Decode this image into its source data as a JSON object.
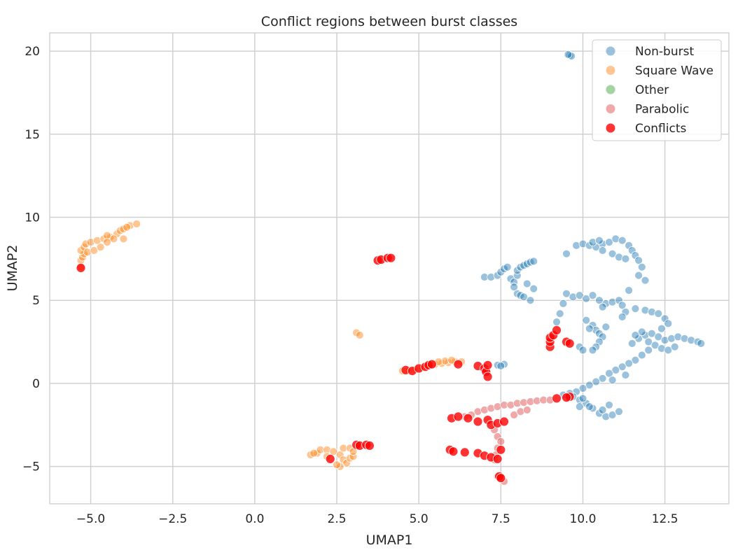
{
  "chart_data": {
    "type": "scatter",
    "title": "Conflict regions between burst classes",
    "xlabel": "UMAP1",
    "ylabel": "UMAP2",
    "xlim": [
      -6.25,
      14.45
    ],
    "ylim": [
      -7.25,
      21.1
    ],
    "xticks": [
      -5.0,
      -2.5,
      0.0,
      2.5,
      5.0,
      7.5,
      10.0,
      12.5
    ],
    "xtick_labels": [
      "−5.0",
      "−2.5",
      "0.0",
      "2.5",
      "5.0",
      "7.5",
      "10.0",
      "12.5"
    ],
    "yticks": [
      -5,
      0,
      5,
      10,
      15,
      20
    ],
    "ytick_labels": [
      "−5",
      "0",
      "5",
      "10",
      "15",
      "20"
    ],
    "grid": true,
    "legend_position": "top-right",
    "series": [
      {
        "name": "Non-burst",
        "color": "#1f77b4",
        "opacity": 0.45,
        "points": [
          [
            9.6,
            19.75
          ],
          [
            9.65,
            19.7
          ],
          [
            9.55,
            19.8
          ],
          [
            7.0,
            6.4
          ],
          [
            7.2,
            6.4
          ],
          [
            7.4,
            6.5
          ],
          [
            7.5,
            6.7
          ],
          [
            7.6,
            6.9
          ],
          [
            7.7,
            7.0
          ],
          [
            7.8,
            6.3
          ],
          [
            7.9,
            6.1
          ],
          [
            8.0,
            6.5
          ],
          [
            8.0,
            6.8
          ],
          [
            8.1,
            7.0
          ],
          [
            8.2,
            7.1
          ],
          [
            8.3,
            7.2
          ],
          [
            8.4,
            7.3
          ],
          [
            8.5,
            7.35
          ],
          [
            8.0,
            5.4
          ],
          [
            8.1,
            5.3
          ],
          [
            8.2,
            5.2
          ],
          [
            8.4,
            5.0
          ],
          [
            7.9,
            5.8
          ],
          [
            8.3,
            6.0
          ],
          [
            8.5,
            5.7
          ],
          [
            9.5,
            7.8
          ],
          [
            9.8,
            8.3
          ],
          [
            10.0,
            8.4
          ],
          [
            10.2,
            8.3
          ],
          [
            10.4,
            8.2
          ],
          [
            10.6,
            8.4
          ],
          [
            10.8,
            8.5
          ],
          [
            11.0,
            8.7
          ],
          [
            11.2,
            8.6
          ],
          [
            11.4,
            8.3
          ],
          [
            11.5,
            8.0
          ],
          [
            11.6,
            7.7
          ],
          [
            11.7,
            7.4
          ],
          [
            11.8,
            7.0
          ],
          [
            11.7,
            6.5
          ],
          [
            11.9,
            6.2
          ],
          [
            10.6,
            8.0
          ],
          [
            10.9,
            7.8
          ],
          [
            11.1,
            7.6
          ],
          [
            11.3,
            7.5
          ],
          [
            10.3,
            8.5
          ],
          [
            10.5,
            8.6
          ],
          [
            9.5,
            5.4
          ],
          [
            9.7,
            5.2
          ],
          [
            9.9,
            5.3
          ],
          [
            10.1,
            5.1
          ],
          [
            10.3,
            5.3
          ],
          [
            10.5,
            5.0
          ],
          [
            10.7,
            4.8
          ],
          [
            10.9,
            4.9
          ],
          [
            11.1,
            5.0
          ],
          [
            11.2,
            4.7
          ],
          [
            11.3,
            4.3
          ],
          [
            11.2,
            4.0
          ],
          [
            11.4,
            5.6
          ],
          [
            9.4,
            4.8
          ],
          [
            9.3,
            4.2
          ],
          [
            9.2,
            3.7
          ],
          [
            10.6,
            4.6
          ],
          [
            10.1,
            3.8
          ],
          [
            10.3,
            3.5
          ],
          [
            10.4,
            3.2
          ],
          [
            10.5,
            3.0
          ],
          [
            10.6,
            2.8
          ],
          [
            10.5,
            2.5
          ],
          [
            10.4,
            2.2
          ],
          [
            10.3,
            2.0
          ],
          [
            10.2,
            3.3
          ],
          [
            10.7,
            3.4
          ],
          [
            9.9,
            2.2
          ],
          [
            10.0,
            2.0
          ],
          [
            11.5,
            2.4
          ],
          [
            11.7,
            2.7
          ],
          [
            11.9,
            2.9
          ],
          [
            12.1,
            3.0
          ],
          [
            12.3,
            2.8
          ],
          [
            12.5,
            2.6
          ],
          [
            12.7,
            2.7
          ],
          [
            12.9,
            2.8
          ],
          [
            13.1,
            2.7
          ],
          [
            13.3,
            2.6
          ],
          [
            13.5,
            2.5
          ],
          [
            13.6,
            2.4
          ],
          [
            12.0,
            2.5
          ],
          [
            12.2,
            2.3
          ],
          [
            12.4,
            2.1
          ],
          [
            12.6,
            2.0
          ],
          [
            12.8,
            2.2
          ],
          [
            11.6,
            4.5
          ],
          [
            11.9,
            4.4
          ],
          [
            12.1,
            4.3
          ],
          [
            12.3,
            4.2
          ],
          [
            12.5,
            3.9
          ],
          [
            12.6,
            3.6
          ],
          [
            12.4,
            3.3
          ],
          [
            11.8,
            3.1
          ],
          [
            11.6,
            2.9
          ],
          [
            12.0,
            2.0
          ],
          [
            11.8,
            1.7
          ],
          [
            11.6,
            1.4
          ],
          [
            11.4,
            1.2
          ],
          [
            11.2,
            1.0
          ],
          [
            11.0,
            0.8
          ],
          [
            10.8,
            0.6
          ],
          [
            10.6,
            0.3
          ],
          [
            10.4,
            0.1
          ],
          [
            10.2,
            -0.1
          ],
          [
            10.0,
            -0.3
          ],
          [
            9.8,
            -0.5
          ],
          [
            9.6,
            -0.6
          ],
          [
            9.4,
            -0.7
          ],
          [
            11.3,
            0.5
          ],
          [
            10.9,
            0.2
          ],
          [
            9.7,
            -0.8
          ],
          [
            9.9,
            -1.0
          ],
          [
            10.1,
            -1.2
          ],
          [
            10.3,
            -1.5
          ],
          [
            10.5,
            -1.8
          ],
          [
            10.7,
            -2.0
          ],
          [
            10.9,
            -1.9
          ],
          [
            11.1,
            -1.7
          ],
          [
            10.2,
            -1.4
          ],
          [
            10.6,
            -1.6
          ],
          [
            10.8,
            -1.3
          ],
          [
            9.9,
            -1.4
          ],
          [
            10.0,
            -0.9
          ],
          [
            7.4,
            1.1
          ],
          [
            7.6,
            1.15
          ],
          [
            7.5,
            1.05
          ]
        ]
      },
      {
        "name": "Square Wave",
        "color": "#ff7f0e",
        "opacity": 0.45,
        "points": [
          [
            -5.3,
            7.0
          ],
          [
            -5.3,
            7.4
          ],
          [
            -5.25,
            7.6
          ],
          [
            -5.2,
            7.8
          ],
          [
            -5.3,
            8.0
          ],
          [
            -5.2,
            8.2
          ],
          [
            -5.15,
            8.4
          ],
          [
            -5.0,
            8.5
          ],
          [
            -4.8,
            8.6
          ],
          [
            -4.6,
            8.7
          ],
          [
            -4.4,
            8.8
          ],
          [
            -4.2,
            9.0
          ],
          [
            -4.1,
            9.2
          ],
          [
            -4.0,
            9.3
          ],
          [
            -3.8,
            9.5
          ],
          [
            -3.6,
            9.6
          ],
          [
            -4.5,
            8.9
          ],
          [
            -4.3,
            8.7
          ],
          [
            -5.1,
            7.9
          ],
          [
            -4.9,
            8.0
          ],
          [
            -4.7,
            8.2
          ],
          [
            -4.5,
            8.5
          ],
          [
            -4.0,
            8.7
          ],
          [
            -3.9,
            9.4
          ],
          [
            3.1,
            3.05
          ],
          [
            3.2,
            2.9
          ],
          [
            4.5,
            0.75
          ],
          [
            4.7,
            0.8
          ],
          [
            4.9,
            0.85
          ],
          [
            5.1,
            0.95
          ],
          [
            5.3,
            1.05
          ],
          [
            5.5,
            1.15
          ],
          [
            5.7,
            1.2
          ],
          [
            5.9,
            1.25
          ],
          [
            6.1,
            1.3
          ],
          [
            6.3,
            1.3
          ],
          [
            5.8,
            1.35
          ],
          [
            5.6,
            1.3
          ],
          [
            6.0,
            1.4
          ],
          [
            1.7,
            -4.3
          ],
          [
            1.9,
            -4.2
          ],
          [
            2.0,
            -4.0
          ],
          [
            2.2,
            -4.0
          ],
          [
            2.4,
            -4.1
          ],
          [
            2.6,
            -4.3
          ],
          [
            2.7,
            -4.6
          ],
          [
            2.8,
            -4.8
          ],
          [
            2.6,
            -5.0
          ],
          [
            2.9,
            -4.5
          ],
          [
            3.0,
            -4.4
          ],
          [
            2.5,
            -4.9
          ],
          [
            2.7,
            -3.9
          ],
          [
            2.9,
            -3.9
          ],
          [
            3.0,
            -4.1
          ],
          [
            2.2,
            -4.4
          ],
          [
            1.8,
            -4.2
          ]
        ]
      },
      {
        "name": "Other",
        "color": "#2ca02c",
        "opacity": 0.45,
        "points": []
      },
      {
        "name": "Parabolic",
        "color": "#d62728",
        "opacity": 0.4,
        "points": [
          [
            6.8,
            -1.7
          ],
          [
            7.0,
            -1.6
          ],
          [
            7.2,
            -1.5
          ],
          [
            7.4,
            -1.4
          ],
          [
            7.6,
            -1.3
          ],
          [
            7.8,
            -1.3
          ],
          [
            8.0,
            -1.2
          ],
          [
            8.2,
            -1.15
          ],
          [
            8.4,
            -1.1
          ],
          [
            8.6,
            -1.05
          ],
          [
            8.8,
            -1.0
          ],
          [
            9.0,
            -1.0
          ],
          [
            7.9,
            -1.9
          ],
          [
            8.1,
            -1.7
          ],
          [
            8.3,
            -1.6
          ],
          [
            6.6,
            -1.9
          ],
          [
            6.4,
            -2.0
          ],
          [
            7.3,
            -2.8
          ],
          [
            7.4,
            -3.2
          ],
          [
            7.5,
            -3.5
          ],
          [
            7.4,
            -3.9
          ],
          [
            7.35,
            -4.3
          ],
          [
            7.3,
            -4.6
          ],
          [
            7.4,
            -5.6
          ],
          [
            7.6,
            -5.9
          ]
        ]
      },
      {
        "name": "Conflicts",
        "color": "#ff0000",
        "opacity": 0.8,
        "points": [
          [
            -5.3,
            6.95
          ],
          [
            3.75,
            7.4
          ],
          [
            3.85,
            7.45
          ],
          [
            4.05,
            7.55
          ],
          [
            4.15,
            7.55
          ],
          [
            4.6,
            0.8
          ],
          [
            4.8,
            0.75
          ],
          [
            5.0,
            0.9
          ],
          [
            5.2,
            1.0
          ],
          [
            5.3,
            1.1
          ],
          [
            5.4,
            1.15
          ],
          [
            6.2,
            1.15
          ],
          [
            6.8,
            1.05
          ],
          [
            7.0,
            0.9
          ],
          [
            7.05,
            0.7
          ],
          [
            7.1,
            0.4
          ],
          [
            7.1,
            1.1
          ],
          [
            2.3,
            -4.55
          ],
          [
            3.1,
            -3.7
          ],
          [
            3.2,
            -3.75
          ],
          [
            3.4,
            -3.7
          ],
          [
            3.5,
            -3.75
          ],
          [
            6.0,
            -2.1
          ],
          [
            6.2,
            -2.0
          ],
          [
            6.5,
            -2.1
          ],
          [
            6.8,
            -2.3
          ],
          [
            7.1,
            -2.2
          ],
          [
            7.2,
            -2.5
          ],
          [
            7.4,
            -2.4
          ],
          [
            7.6,
            -2.3
          ],
          [
            9.0,
            2.2
          ],
          [
            9.0,
            2.5
          ],
          [
            9.0,
            2.75
          ],
          [
            9.1,
            2.9
          ],
          [
            9.2,
            3.2
          ],
          [
            9.5,
            2.5
          ],
          [
            9.6,
            2.4
          ],
          [
            9.6,
            -0.8
          ],
          [
            9.2,
            -0.9
          ],
          [
            9.5,
            -0.85
          ],
          [
            5.95,
            -4.0
          ],
          [
            6.05,
            -4.1
          ],
          [
            6.4,
            -4.15
          ],
          [
            6.8,
            -4.2
          ],
          [
            7.0,
            -4.35
          ],
          [
            7.2,
            -4.45
          ],
          [
            7.4,
            -4.55
          ],
          [
            7.5,
            -4.0
          ],
          [
            7.45,
            -5.6
          ],
          [
            7.5,
            -5.7
          ]
        ]
      }
    ]
  }
}
